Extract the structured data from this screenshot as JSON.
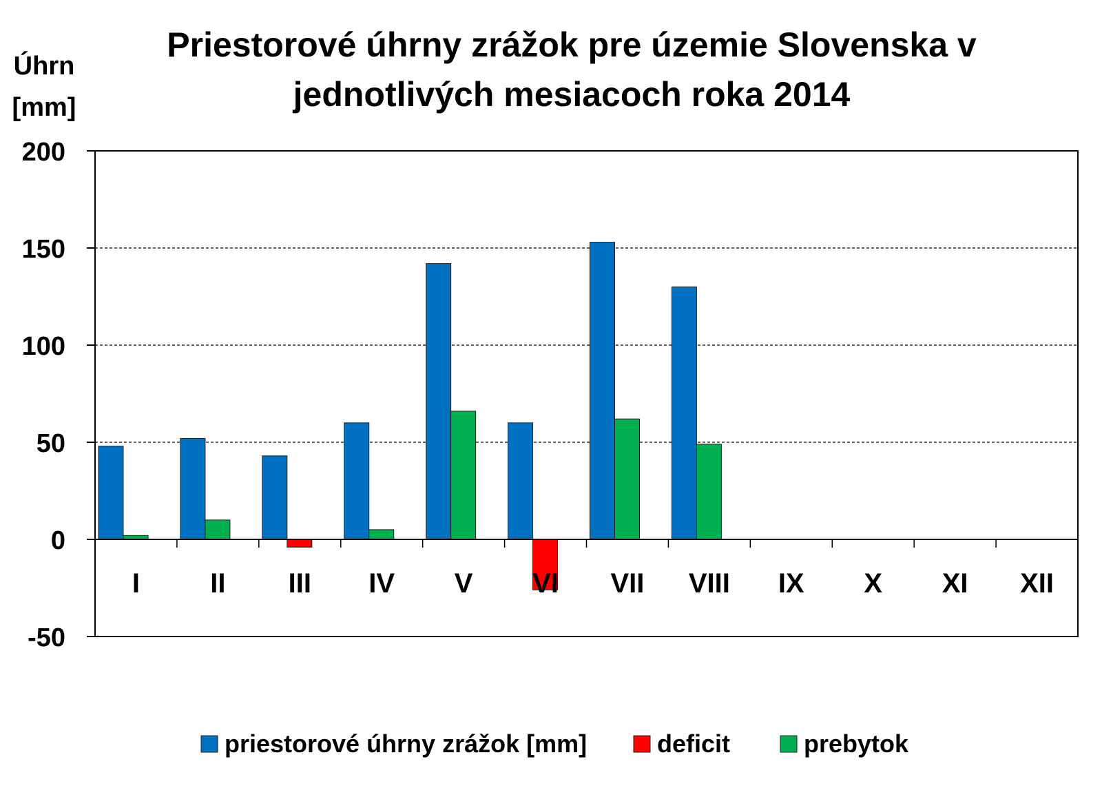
{
  "chart_data": {
    "type": "bar",
    "title": [
      "Priestorové úhrny zrážok pre územie Slovenska v",
      "jednotlivých mesiacoch roka 2014"
    ],
    "ylabel": [
      "Úhrn",
      "[mm]"
    ],
    "xlabel": "",
    "categories": [
      "I",
      "II",
      "III",
      "IV",
      "V",
      "VI",
      "VII",
      "VIII",
      "IX",
      "X",
      "XI",
      "XII"
    ],
    "ylim": [
      -50,
      200
    ],
    "yticks": [
      -50,
      0,
      50,
      100,
      150,
      200
    ],
    "grid": "horizontal dashed",
    "legend_position": "bottom",
    "series": [
      {
        "name": "priestorové úhrny zrážok [mm]",
        "color": "#0070C0",
        "values": [
          48,
          52,
          43,
          60,
          142,
          60,
          153,
          130,
          null,
          null,
          null,
          null
        ]
      },
      {
        "name": "deficit",
        "color": "#FF0000",
        "values": [
          null,
          null,
          -4,
          null,
          null,
          -26,
          null,
          null,
          null,
          null,
          null,
          null
        ]
      },
      {
        "name": "prebytok",
        "color": "#00B050",
        "values": [
          2,
          10,
          null,
          5,
          66,
          null,
          62,
          49,
          null,
          null,
          null,
          null
        ]
      }
    ]
  }
}
